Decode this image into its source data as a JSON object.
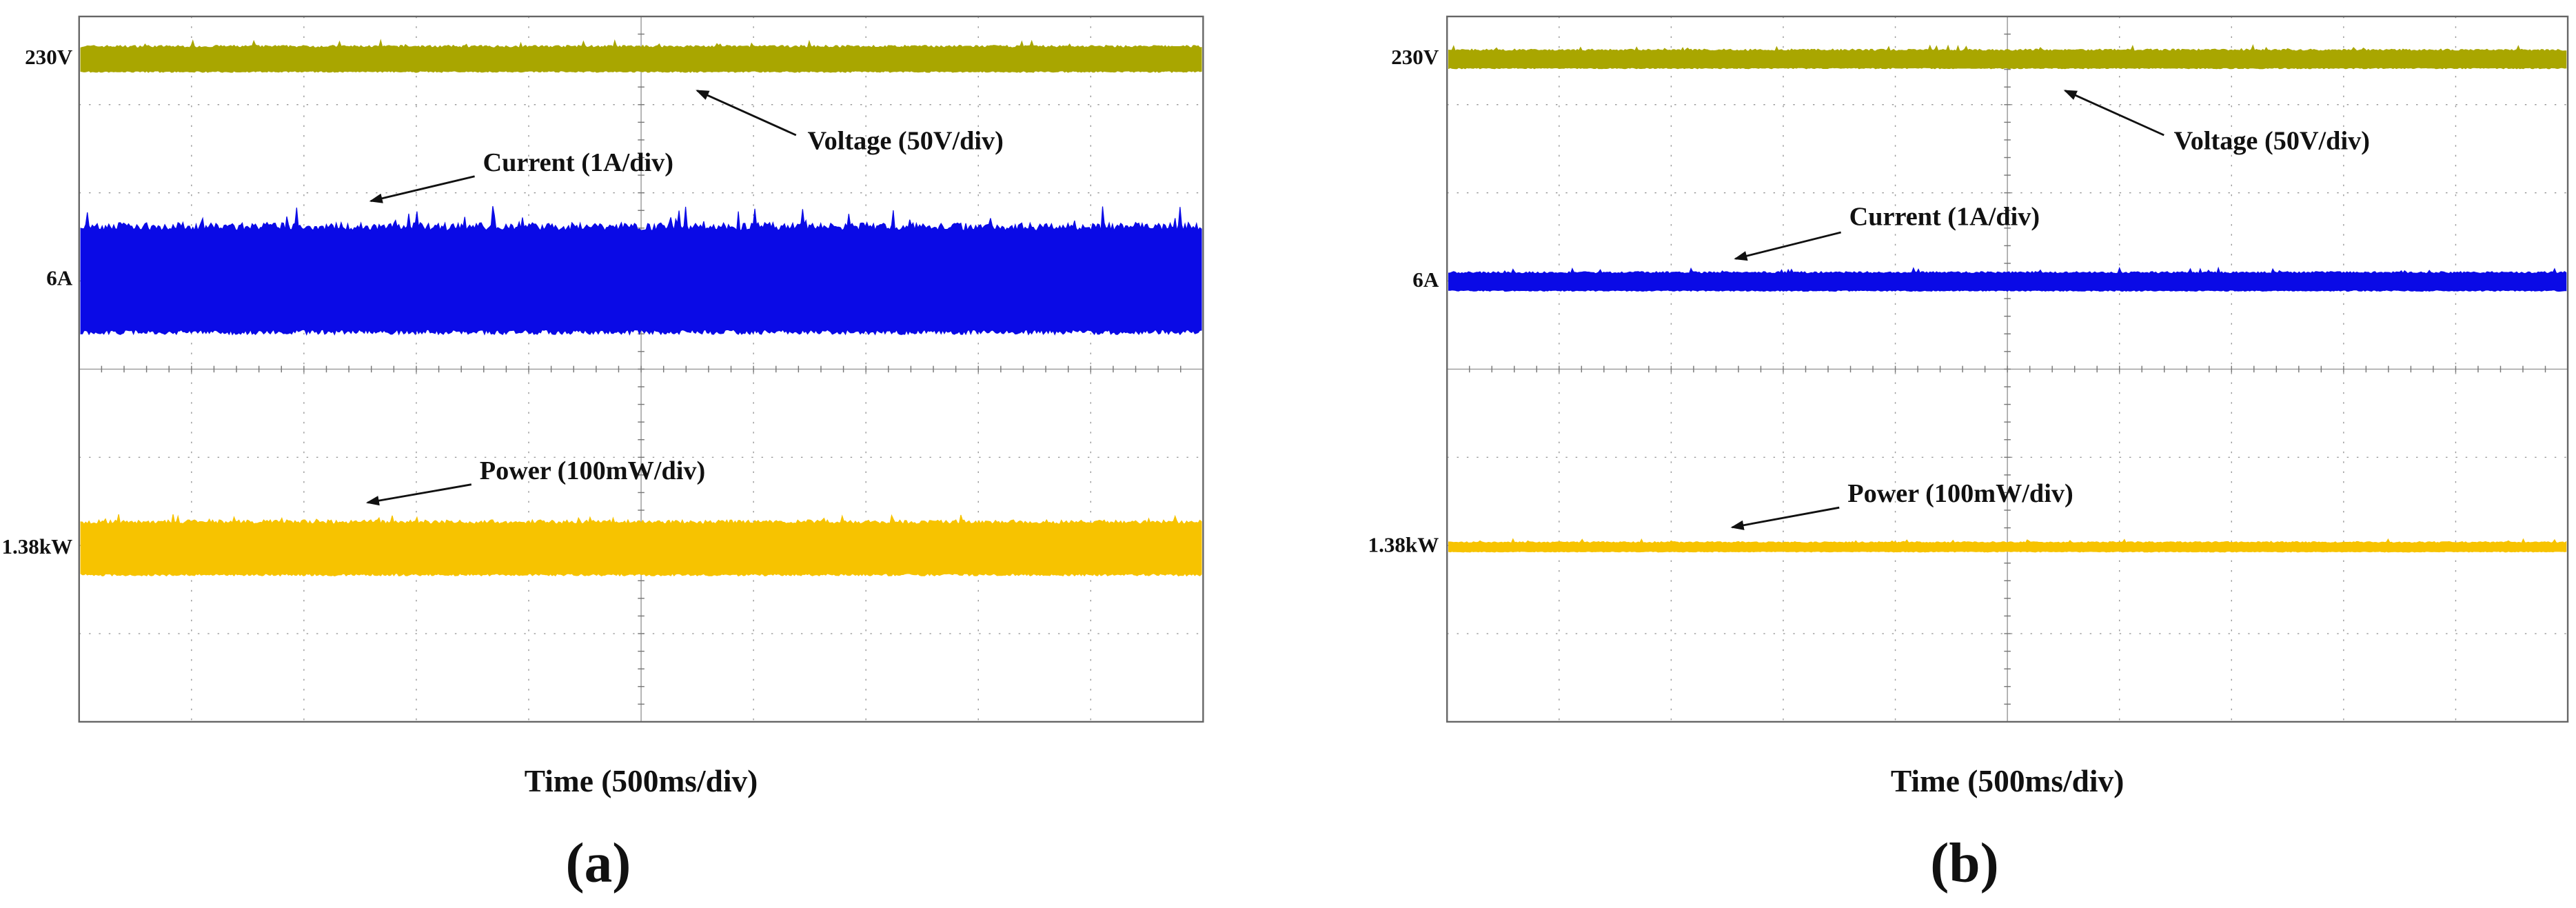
{
  "panels": [
    {
      "label": "(a)",
      "x_label": "Time (500ms/div)",
      "traces": [
        {
          "name": "Voltage (50V/div)",
          "level_label": "230V",
          "color": "#a9a600"
        },
        {
          "name": "Current (1A/div)",
          "level_label": "6A",
          "color": "#0a0ae6"
        },
        {
          "name": "Power (100mW/div)",
          "level_label": "1.38kW",
          "color": "#f7c300"
        }
      ]
    },
    {
      "label": "(b)",
      "x_label": "Time (500ms/div)",
      "traces": [
        {
          "name": "Voltage (50V/div)",
          "level_label": "230V",
          "color": "#a9a600"
        },
        {
          "name": "Current (1A/div)",
          "level_label": "6A",
          "color": "#0a0ae6"
        },
        {
          "name": "Power (100mW/div)",
          "level_label": "1.38kW",
          "color": "#f7c300"
        }
      ]
    }
  ]
}
